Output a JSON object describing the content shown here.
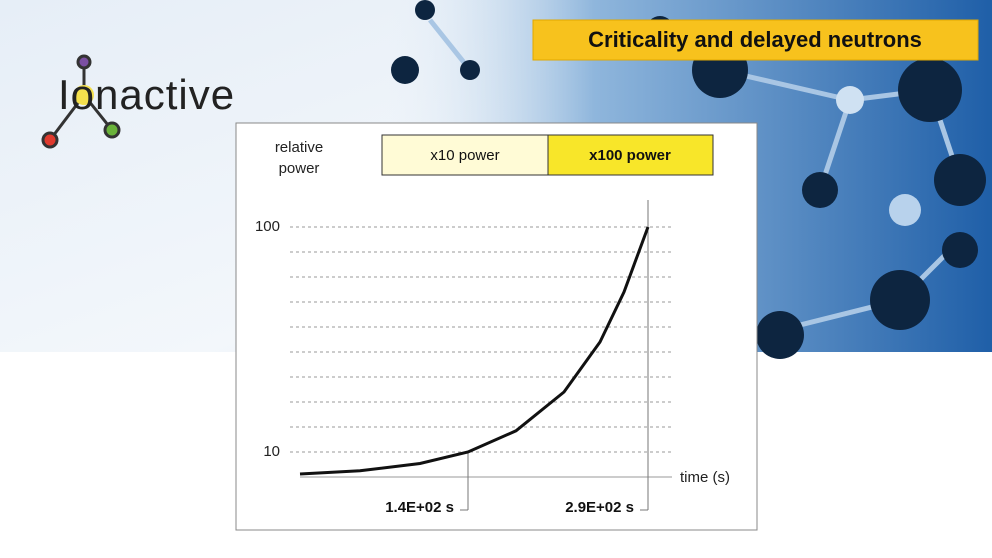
{
  "header": {
    "logo": "Ionactive",
    "title": "Criticality and delayed neutrons"
  },
  "chart_data": {
    "type": "line",
    "ylabel": "relative power",
    "xlabel": "time (s)",
    "badges": [
      "x10 power",
      "x100 power"
    ],
    "x": [
      0,
      50,
      100,
      140,
      180,
      220,
      250,
      270,
      290
    ],
    "series": [
      {
        "name": "relative power",
        "color": "#111111",
        "values": [
          1.2,
          2.5,
          5.4,
          10,
          18.5,
          34,
          54,
          74,
          100
        ]
      }
    ],
    "xlim": [
      0,
      310
    ],
    "ylim": [
      0,
      100
    ],
    "xticks": [
      {
        "value": 140,
        "label": "1.4E+02 s"
      },
      {
        "value": 290,
        "label": "2.9E+02 s"
      }
    ],
    "yticks": [
      10,
      100
    ],
    "minor_yticks": [
      20,
      30,
      40,
      50,
      60,
      70,
      80,
      90
    ],
    "grid": true
  }
}
